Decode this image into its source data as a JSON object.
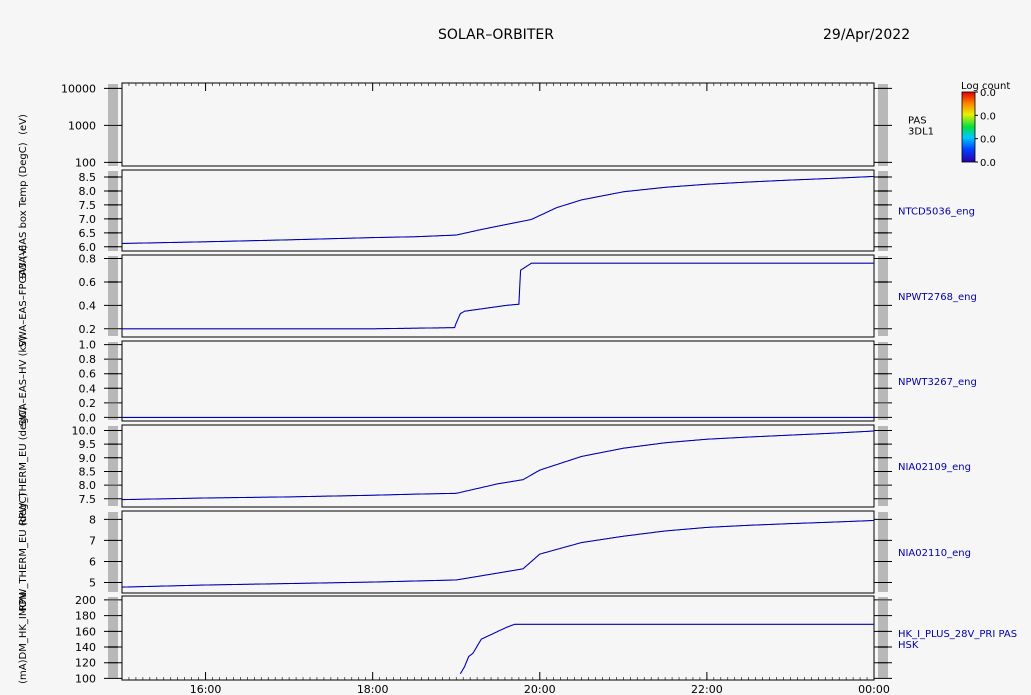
{
  "header": {
    "title": "SOLAR–ORBITER",
    "date": "29/Apr/2022"
  },
  "colorbar": {
    "title": "Log count",
    "ticks": [
      "0.0",
      "0.0",
      "0.0",
      "0.0"
    ]
  },
  "x_axis": {
    "ticks": [
      {
        "hour": 16,
        "label": "16:00"
      },
      {
        "hour": 18,
        "label": "18:00"
      },
      {
        "hour": 20,
        "label": "20:00"
      },
      {
        "hour": 22,
        "label": "22:00"
      },
      {
        "hour": 24,
        "label": "00:00"
      }
    ],
    "range_hours": [
      15.0,
      24.0
    ]
  },
  "colors": {
    "line": "#0000b4",
    "label": "#0000aa",
    "axis": "#000000"
  },
  "chart_data": [
    {
      "type": "heatmap",
      "name": "PAS 3DL1",
      "right_label": [
        "PAS",
        "3DL1"
      ],
      "right_label_color": "#000000",
      "ylabel": "(eV)",
      "ylog": true,
      "ylim": [
        80,
        14000
      ],
      "yticks": [
        {
          "v": 100,
          "l": "100"
        },
        {
          "v": 1000,
          "l": "1000"
        },
        {
          "v": 10000,
          "l": "10000"
        }
      ],
      "x": [],
      "values": []
    },
    {
      "type": "line",
      "name": "NTCD5036_eng",
      "right_label": [
        "NTCD5036_eng"
      ],
      "ylabel": "SWA–EAS box Temp (DegC)",
      "ylim": [
        5.85,
        8.75
      ],
      "yticks": [
        {
          "v": 6.0,
          "l": "6.0"
        },
        {
          "v": 6.5,
          "l": "6.5"
        },
        {
          "v": 7.0,
          "l": "7.0"
        },
        {
          "v": 7.5,
          "l": "7.5"
        },
        {
          "v": 8.0,
          "l": "8.0"
        },
        {
          "v": 8.5,
          "l": "8.5"
        }
      ],
      "x": [
        15.0,
        16.0,
        17.0,
        18.0,
        18.5,
        19.0,
        19.3,
        19.6,
        19.9,
        20.2,
        20.5,
        21.0,
        21.5,
        22.0,
        22.5,
        23.0,
        23.5,
        24.0
      ],
      "values": [
        6.12,
        6.18,
        6.25,
        6.33,
        6.36,
        6.42,
        6.62,
        6.8,
        6.98,
        7.4,
        7.68,
        7.97,
        8.13,
        8.24,
        8.32,
        8.39,
        8.45,
        8.52
      ]
    },
    {
      "type": "line",
      "name": "NPWT2768_eng",
      "right_label": [
        "NPWT2768_eng"
      ],
      "ylabel": "SWA–EAS–FPGA3 (V)",
      "ylim": [
        0.13,
        0.83
      ],
      "yticks": [
        {
          "v": 0.2,
          "l": "0.2"
        },
        {
          "v": 0.4,
          "l": "0.4"
        },
        {
          "v": 0.6,
          "l": "0.6"
        },
        {
          "v": 0.8,
          "l": "0.8"
        }
      ],
      "x": [
        15.0,
        16.0,
        17.0,
        18.0,
        18.98,
        19.0,
        19.05,
        19.1,
        19.3,
        19.6,
        19.75,
        19.77,
        19.9,
        20.5,
        21.0,
        22.0,
        23.0,
        24.0
      ],
      "values": [
        0.2,
        0.2,
        0.2,
        0.2,
        0.21,
        0.25,
        0.33,
        0.35,
        0.37,
        0.4,
        0.41,
        0.7,
        0.76,
        0.76,
        0.76,
        0.76,
        0.76,
        0.76
      ]
    },
    {
      "type": "line",
      "name": "NPWT3267_eng",
      "right_label": [
        "NPWT3267_eng"
      ],
      "ylabel": "SWA–EAS–HV (kV)",
      "ylim": [
        -0.05,
        1.05
      ],
      "yticks": [
        {
          "v": 0.0,
          "l": "0.0"
        },
        {
          "v": 0.2,
          "l": "0.2"
        },
        {
          "v": 0.4,
          "l": "0.4"
        },
        {
          "v": 0.6,
          "l": "0.6"
        },
        {
          "v": 0.8,
          "l": "0.8"
        },
        {
          "v": 1.0,
          "l": "1.0"
        }
      ],
      "x": [
        15.0,
        24.0
      ],
      "values": [
        0.0,
        0.0
      ]
    },
    {
      "type": "line",
      "name": "NIA02109_eng",
      "right_label": [
        "NIA02109_eng"
      ],
      "ylabel": "RPW_THERM_EU (degC)",
      "ylim": [
        7.2,
        10.2
      ],
      "yticks": [
        {
          "v": 7.5,
          "l": "7.5"
        },
        {
          "v": 8.0,
          "l": "8.0"
        },
        {
          "v": 8.5,
          "l": "8.5"
        },
        {
          "v": 9.0,
          "l": "9.0"
        },
        {
          "v": 9.5,
          "l": "9.5"
        },
        {
          "v": 10.0,
          "l": "10.0"
        }
      ],
      "x": [
        15.0,
        16.0,
        17.0,
        18.0,
        18.5,
        19.0,
        19.5,
        19.8,
        20.0,
        20.5,
        21.0,
        21.5,
        22.0,
        22.5,
        23.0,
        23.5,
        24.0
      ],
      "values": [
        7.47,
        7.53,
        7.57,
        7.63,
        7.67,
        7.7,
        8.05,
        8.2,
        8.55,
        9.05,
        9.35,
        9.55,
        9.68,
        9.76,
        9.83,
        9.9,
        9.98
      ]
    },
    {
      "type": "line",
      "name": "NIA02110_eng",
      "right_label": [
        "NIA02110_eng"
      ],
      "ylabel": "RPW_THERM_EU (degC)",
      "ylim": [
        4.5,
        8.4
      ],
      "yticks": [
        {
          "v": 5,
          "l": "5"
        },
        {
          "v": 6,
          "l": "6"
        },
        {
          "v": 7,
          "l": "7"
        },
        {
          "v": 8,
          "l": "8"
        }
      ],
      "x": [
        15.0,
        16.0,
        17.0,
        18.0,
        18.5,
        19.0,
        19.5,
        19.8,
        20.0,
        20.5,
        21.0,
        21.5,
        22.0,
        22.5,
        23.0,
        23.5,
        24.0
      ],
      "values": [
        4.78,
        4.88,
        4.95,
        5.02,
        5.07,
        5.12,
        5.45,
        5.65,
        6.35,
        6.9,
        7.2,
        7.45,
        7.62,
        7.72,
        7.8,
        7.87,
        7.95
      ]
    },
    {
      "type": "line",
      "name": "HK_I_PLUS_28V_PRI PAS HSK",
      "right_label": [
        "HK_I_PLUS_28V_PRI PAS",
        "HSK"
      ],
      "ylabel": "(mA)DM_HK_IMON",
      "ylim": [
        98,
        205
      ],
      "yticks": [
        {
          "v": 100,
          "l": "100"
        },
        {
          "v": 120,
          "l": "120"
        },
        {
          "v": 140,
          "l": "140"
        },
        {
          "v": 160,
          "l": "160"
        },
        {
          "v": 180,
          "l": "180"
        },
        {
          "v": 200,
          "l": "200"
        }
      ],
      "x": [
        19.05,
        19.05,
        19.1,
        19.15,
        19.2,
        19.3,
        19.4,
        19.5,
        19.6,
        19.7,
        20.0,
        21.0,
        22.0,
        23.0,
        24.0
      ],
      "values": [
        98,
        106,
        115,
        128,
        132,
        150,
        155,
        160,
        165,
        169,
        169,
        169,
        169,
        169,
        169
      ]
    }
  ]
}
